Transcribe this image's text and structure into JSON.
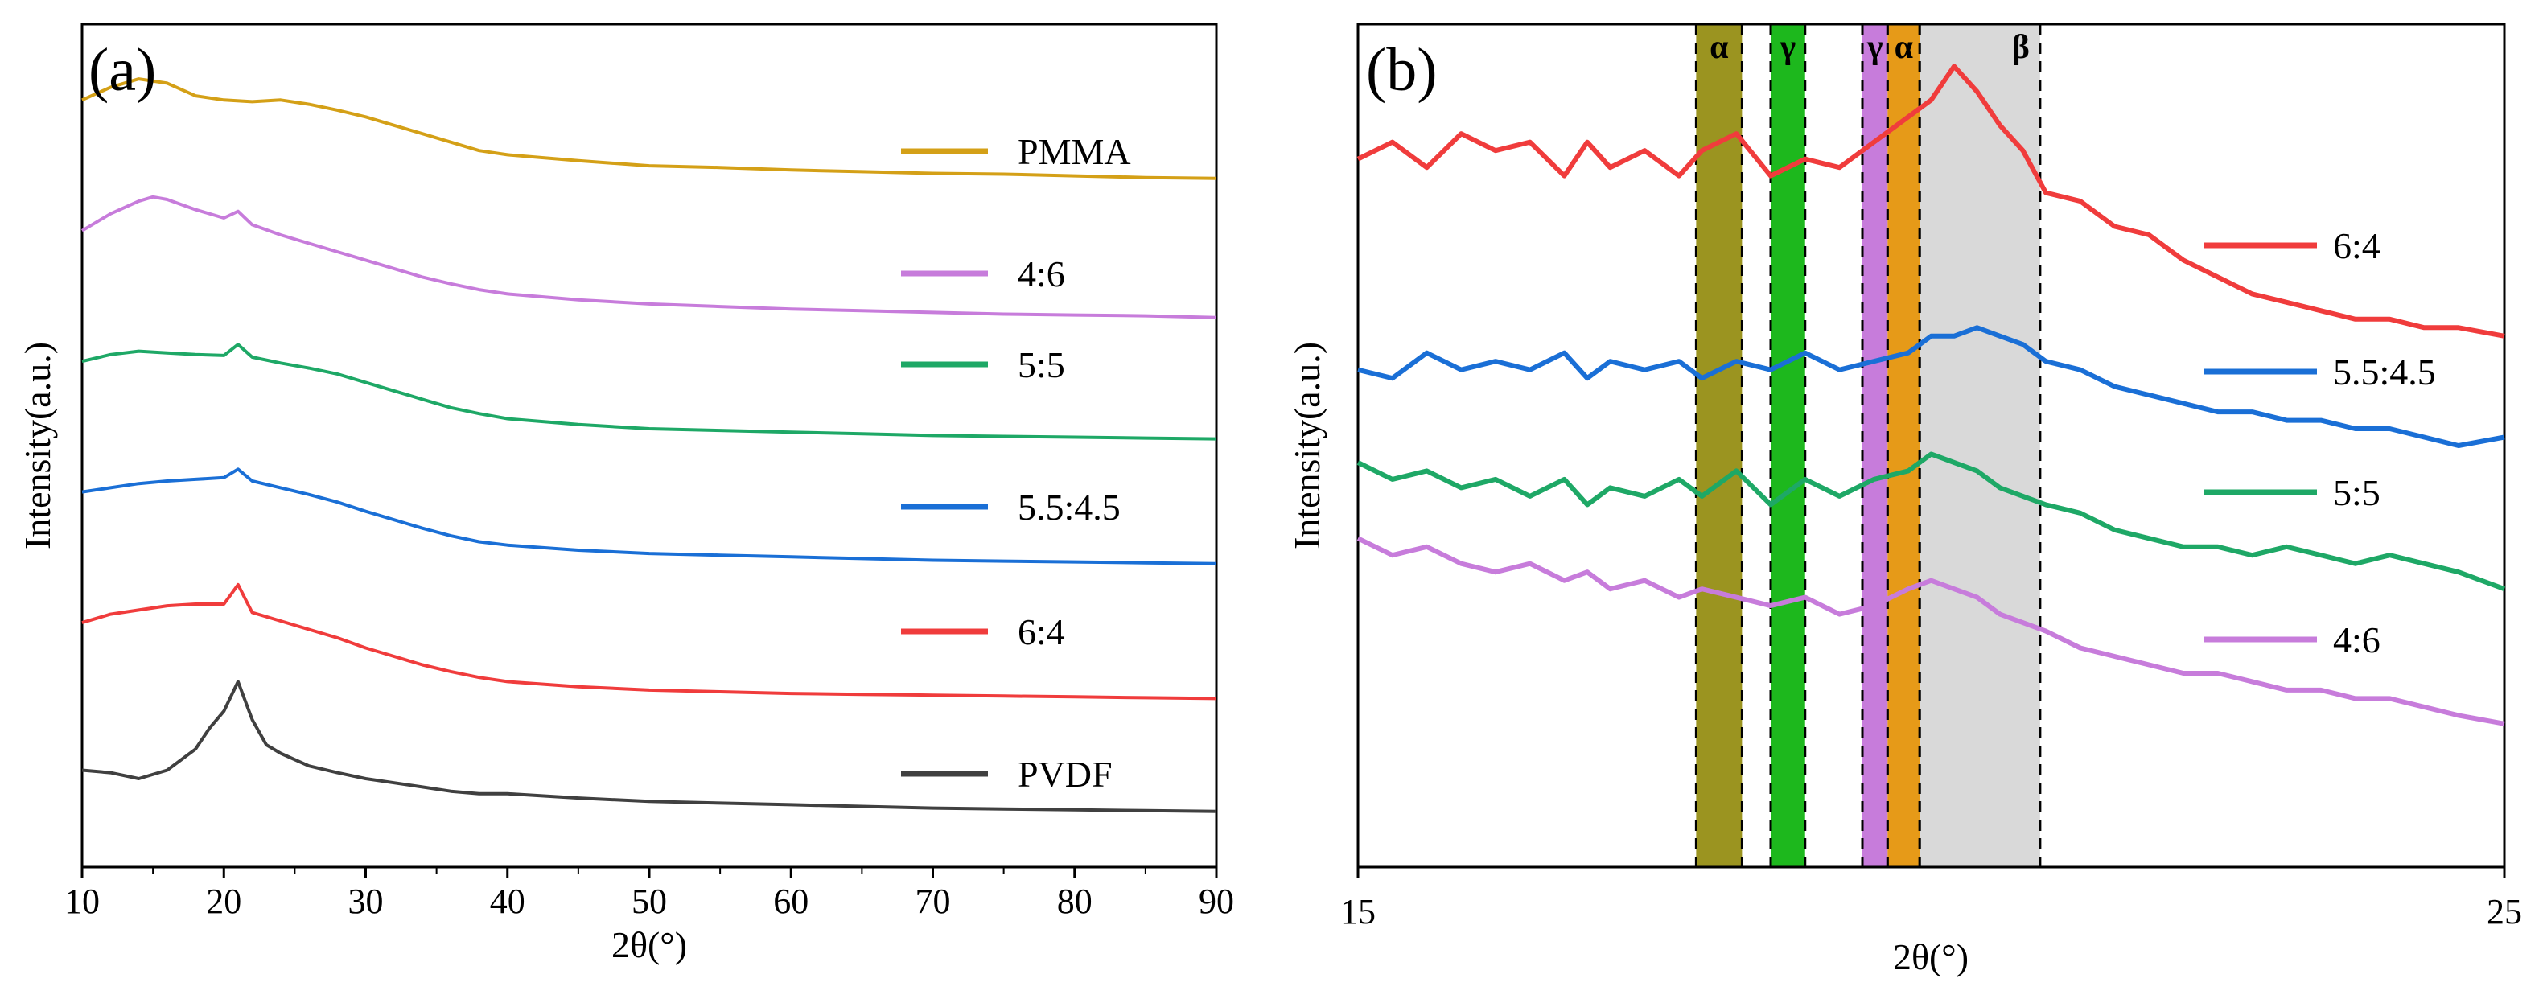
{
  "chart_data": [
    {
      "panel": "(a)",
      "type": "line",
      "xlabel": "2θ(°)",
      "ylabel": "Intensity(a.u.)",
      "xlim": [
        10,
        90
      ],
      "ylim": [
        0,
        10
      ],
      "xticks": [
        "10",
        "20",
        "30",
        "40",
        "50",
        "60",
        "70",
        "80",
        "90"
      ],
      "legend_position": "right, beside each curve",
      "series": [
        {
          "name": "PMMA",
          "color": "#D4A017",
          "x": [
            10,
            12,
            14,
            16,
            18,
            20,
            22,
            24,
            26,
            28,
            30,
            32,
            34,
            36,
            38,
            40,
            45,
            50,
            55,
            60,
            65,
            70,
            75,
            80,
            85,
            90
          ],
          "y": [
            9.1,
            9.25,
            9.35,
            9.3,
            9.15,
            9.1,
            9.08,
            9.1,
            9.05,
            8.98,
            8.9,
            8.8,
            8.7,
            8.6,
            8.5,
            8.45,
            8.38,
            8.32,
            8.3,
            8.27,
            8.25,
            8.23,
            8.22,
            8.2,
            8.18,
            8.17
          ]
        },
        {
          "name": "4:6",
          "color": "#C77CDB",
          "x": [
            10,
            12,
            14,
            15,
            16,
            18,
            20,
            21,
            22,
            24,
            26,
            28,
            30,
            32,
            34,
            36,
            38,
            40,
            45,
            50,
            55,
            60,
            65,
            70,
            75,
            80,
            85,
            90
          ],
          "y": [
            7.55,
            7.75,
            7.9,
            7.95,
            7.92,
            7.8,
            7.7,
            7.78,
            7.62,
            7.5,
            7.4,
            7.3,
            7.2,
            7.1,
            7.0,
            6.92,
            6.85,
            6.8,
            6.73,
            6.68,
            6.65,
            6.62,
            6.6,
            6.58,
            6.56,
            6.55,
            6.54,
            6.52
          ]
        },
        {
          "name": "5:5",
          "color": "#1EA866",
          "x": [
            10,
            12,
            14,
            16,
            18,
            20,
            21,
            22,
            24,
            26,
            28,
            30,
            32,
            34,
            36,
            38,
            40,
            45,
            50,
            55,
            60,
            65,
            70,
            75,
            80,
            85,
            90
          ],
          "y": [
            6.0,
            6.08,
            6.12,
            6.1,
            6.08,
            6.07,
            6.2,
            6.05,
            5.98,
            5.92,
            5.85,
            5.75,
            5.65,
            5.55,
            5.45,
            5.38,
            5.32,
            5.25,
            5.2,
            5.18,
            5.16,
            5.14,
            5.12,
            5.11,
            5.1,
            5.09,
            5.08
          ]
        },
        {
          "name": "5.5:4.5",
          "color": "#1A6FD6",
          "x": [
            10,
            12,
            14,
            16,
            18,
            20,
            21,
            22,
            24,
            26,
            28,
            30,
            32,
            34,
            36,
            38,
            40,
            45,
            50,
            55,
            60,
            65,
            70,
            75,
            80,
            85,
            90
          ],
          "y": [
            4.45,
            4.5,
            4.55,
            4.58,
            4.6,
            4.62,
            4.72,
            4.58,
            4.5,
            4.42,
            4.33,
            4.22,
            4.12,
            4.02,
            3.93,
            3.86,
            3.82,
            3.76,
            3.72,
            3.7,
            3.68,
            3.66,
            3.64,
            3.63,
            3.62,
            3.61,
            3.6
          ]
        },
        {
          "name": "6:4",
          "color": "#F03C3C",
          "x": [
            10,
            12,
            14,
            16,
            18,
            20,
            21,
            22,
            24,
            26,
            28,
            30,
            32,
            34,
            36,
            38,
            40,
            45,
            50,
            55,
            60,
            65,
            70,
            75,
            80,
            85,
            90
          ],
          "y": [
            2.9,
            3.0,
            3.05,
            3.1,
            3.12,
            3.12,
            3.35,
            3.02,
            2.92,
            2.82,
            2.72,
            2.6,
            2.5,
            2.4,
            2.32,
            2.25,
            2.2,
            2.14,
            2.1,
            2.08,
            2.06,
            2.05,
            2.04,
            2.03,
            2.02,
            2.01,
            2.0
          ]
        },
        {
          "name": "PVDF",
          "color": "#404040",
          "x": [
            10,
            12,
            14,
            16,
            18,
            19,
            20,
            21,
            22,
            23,
            24,
            26,
            28,
            30,
            32,
            34,
            36,
            38,
            40,
            45,
            50,
            55,
            60,
            65,
            70,
            75,
            80,
            85,
            90
          ],
          "y": [
            1.15,
            1.12,
            1.05,
            1.15,
            1.4,
            1.65,
            1.85,
            2.2,
            1.75,
            1.45,
            1.35,
            1.2,
            1.12,
            1.05,
            1.0,
            0.95,
            0.9,
            0.87,
            0.87,
            0.82,
            0.78,
            0.76,
            0.74,
            0.72,
            0.7,
            0.69,
            0.68,
            0.67,
            0.66
          ]
        }
      ]
    },
    {
      "panel": "(b)",
      "type": "line",
      "xlabel": "2θ(°)",
      "ylabel": "Intensity(a.u.)",
      "xlim": [
        15,
        25
      ],
      "ylim": [
        0,
        10
      ],
      "xticks": [
        "15",
        "25"
      ],
      "legend_position": "right",
      "bands": [
        {
          "label": "α",
          "x0": 17.95,
          "x1": 18.35,
          "color": "#9B9420"
        },
        {
          "label": "γ",
          "x0": 18.6,
          "x1": 18.9,
          "color": "#1DB81D"
        },
        {
          "label": "γ",
          "x0": 19.4,
          "x1": 19.62,
          "color": "#C77CDB"
        },
        {
          "label": "α",
          "x0": 19.62,
          "x1": 19.9,
          "color": "#E69A18"
        },
        {
          "label": "β",
          "x0": 19.9,
          "x1": 20.95,
          "color": "#D9D9D9"
        }
      ],
      "series": [
        {
          "name": "6:4",
          "color": "#F03C3C",
          "x": [
            15,
            15.3,
            15.6,
            15.9,
            16.2,
            16.5,
            16.8,
            17.0,
            17.2,
            17.5,
            17.8,
            18.0,
            18.3,
            18.6,
            18.9,
            19.2,
            19.5,
            19.8,
            20.0,
            20.2,
            20.4,
            20.6,
            20.8,
            21.0,
            21.3,
            21.6,
            21.9,
            22.2,
            22.5,
            22.8,
            23.1,
            23.4,
            23.7,
            24.0,
            24.3,
            24.6,
            25.0
          ],
          "y": [
            8.4,
            8.6,
            8.3,
            8.7,
            8.5,
            8.6,
            8.2,
            8.6,
            8.3,
            8.5,
            8.2,
            8.5,
            8.7,
            8.2,
            8.4,
            8.3,
            8.6,
            8.9,
            9.1,
            9.5,
            9.2,
            8.8,
            8.5,
            8.0,
            7.9,
            7.6,
            7.5,
            7.2,
            7.0,
            6.8,
            6.7,
            6.6,
            6.5,
            6.5,
            6.4,
            6.4,
            6.3
          ]
        },
        {
          "name": "5.5:4.5",
          "color": "#1A6FD6",
          "x": [
            15,
            15.3,
            15.6,
            15.9,
            16.2,
            16.5,
            16.8,
            17.0,
            17.2,
            17.5,
            17.8,
            18.0,
            18.3,
            18.6,
            18.9,
            19.2,
            19.5,
            19.8,
            20.0,
            20.2,
            20.4,
            20.6,
            20.8,
            21.0,
            21.3,
            21.6,
            21.9,
            22.2,
            22.5,
            22.8,
            23.1,
            23.4,
            23.7,
            24.0,
            24.3,
            24.6,
            25.0
          ],
          "y": [
            5.9,
            5.8,
            6.1,
            5.9,
            6.0,
            5.9,
            6.1,
            5.8,
            6.0,
            5.9,
            6.0,
            5.8,
            6.0,
            5.9,
            6.1,
            5.9,
            6.0,
            6.1,
            6.3,
            6.3,
            6.4,
            6.3,
            6.2,
            6.0,
            5.9,
            5.7,
            5.6,
            5.5,
            5.4,
            5.4,
            5.3,
            5.3,
            5.2,
            5.2,
            5.1,
            5.0,
            5.1
          ]
        },
        {
          "name": "5:5",
          "color": "#1EA866",
          "x": [
            15,
            15.3,
            15.6,
            15.9,
            16.2,
            16.5,
            16.8,
            17.0,
            17.2,
            17.5,
            17.8,
            18.0,
            18.3,
            18.6,
            18.9,
            19.2,
            19.5,
            19.8,
            20.0,
            20.2,
            20.4,
            20.6,
            20.8,
            21.0,
            21.3,
            21.6,
            21.9,
            22.2,
            22.5,
            22.8,
            23.1,
            23.4,
            23.7,
            24.0,
            24.3,
            24.6,
            25.0
          ],
          "y": [
            4.8,
            4.6,
            4.7,
            4.5,
            4.6,
            4.4,
            4.6,
            4.3,
            4.5,
            4.4,
            4.6,
            4.4,
            4.7,
            4.3,
            4.6,
            4.4,
            4.6,
            4.7,
            4.9,
            4.8,
            4.7,
            4.5,
            4.4,
            4.3,
            4.2,
            4.0,
            3.9,
            3.8,
            3.8,
            3.7,
            3.8,
            3.7,
            3.6,
            3.7,
            3.6,
            3.5,
            3.3
          ]
        },
        {
          "name": "4:6",
          "color": "#C77CDB",
          "x": [
            15,
            15.3,
            15.6,
            15.9,
            16.2,
            16.5,
            16.8,
            17.0,
            17.2,
            17.5,
            17.8,
            18.0,
            18.3,
            18.6,
            18.9,
            19.2,
            19.5,
            19.8,
            20.0,
            20.2,
            20.4,
            20.6,
            20.8,
            21.0,
            21.3,
            21.6,
            21.9,
            22.2,
            22.5,
            22.8,
            23.1,
            23.4,
            23.7,
            24.0,
            24.3,
            24.6,
            25.0
          ],
          "y": [
            3.9,
            3.7,
            3.8,
            3.6,
            3.5,
            3.6,
            3.4,
            3.5,
            3.3,
            3.4,
            3.2,
            3.3,
            3.2,
            3.1,
            3.2,
            3.0,
            3.1,
            3.3,
            3.4,
            3.3,
            3.2,
            3.0,
            2.9,
            2.8,
            2.6,
            2.5,
            2.4,
            2.3,
            2.3,
            2.2,
            2.1,
            2.1,
            2.0,
            2.0,
            1.9,
            1.8,
            1.7
          ]
        }
      ]
    }
  ]
}
